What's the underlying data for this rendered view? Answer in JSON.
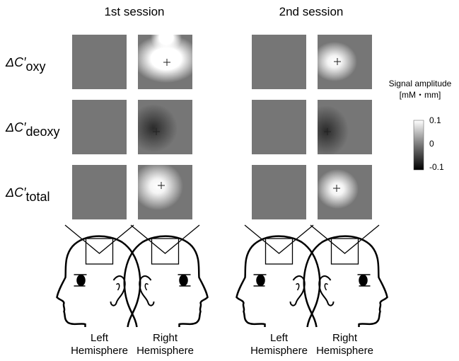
{
  "titles": [
    "1st session",
    "2nd session"
  ],
  "rows": [
    {
      "symbol": "ΔC′",
      "sub": "oxy"
    },
    {
      "symbol": "ΔC′",
      "sub": "deoxy"
    },
    {
      "symbol": "ΔC′",
      "sub": "total"
    }
  ],
  "colorbar": {
    "title": "Signal amplitude",
    "unit": "[mM・mm]",
    "ticks": [
      "0.1",
      "0",
      "-0.1"
    ]
  },
  "columns": [
    {
      "line1": "Left",
      "line2": "Hemisphere"
    },
    {
      "line1": "Right",
      "line2": "Hemisphere"
    },
    {
      "line1": "Left",
      "line2": "Hemisphere"
    },
    {
      "line1": "Right",
      "line2": "Hemisphere"
    }
  ]
}
